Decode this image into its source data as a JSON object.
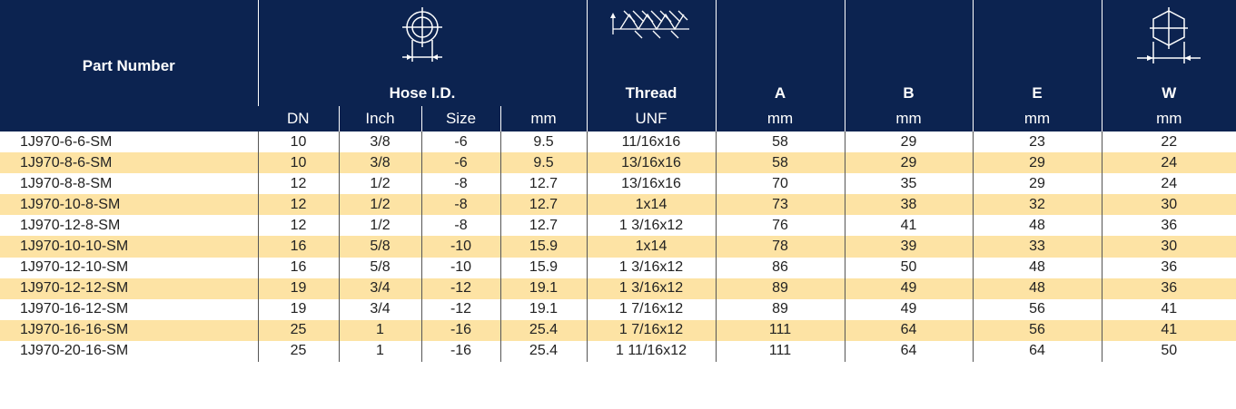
{
  "header": {
    "part_number": "Part Number",
    "hose_id": "Hose I.D.",
    "thread": "Thread",
    "a": "A",
    "b": "B",
    "e": "E",
    "w": "W",
    "sub": [
      "DN",
      "Inch",
      "Size",
      "mm",
      "UNF",
      "mm",
      "mm",
      "mm",
      "mm"
    ],
    "icons": [
      "hose-id-icon",
      "thread-icon",
      "hex-width-icon"
    ]
  },
  "colors": {
    "header_bg": "#0c2350",
    "stripe": "#fde3a4"
  },
  "rows": [
    [
      "1J970-6-6-SM",
      "10",
      "3/8",
      "-6",
      "9.5",
      "11/16x16",
      "58",
      "29",
      "23",
      "22"
    ],
    [
      "1J970-8-6-SM",
      "10",
      "3/8",
      "-6",
      "9.5",
      "13/16x16",
      "58",
      "29",
      "29",
      "24"
    ],
    [
      "1J970-8-8-SM",
      "12",
      "1/2",
      "-8",
      "12.7",
      "13/16x16",
      "70",
      "35",
      "29",
      "24"
    ],
    [
      "1J970-10-8-SM",
      "12",
      "1/2",
      "-8",
      "12.7",
      "1x14",
      "73",
      "38",
      "32",
      "30"
    ],
    [
      "1J970-12-8-SM",
      "12",
      "1/2",
      "-8",
      "12.7",
      "1 3/16x12",
      "76",
      "41",
      "48",
      "36"
    ],
    [
      "1J970-10-10-SM",
      "16",
      "5/8",
      "-10",
      "15.9",
      "1x14",
      "78",
      "39",
      "33",
      "30"
    ],
    [
      "1J970-12-10-SM",
      "16",
      "5/8",
      "-10",
      "15.9",
      "1 3/16x12",
      "86",
      "50",
      "48",
      "36"
    ],
    [
      "1J970-12-12-SM",
      "19",
      "3/4",
      "-12",
      "19.1",
      "1 3/16x12",
      "89",
      "49",
      "48",
      "36"
    ],
    [
      "1J970-16-12-SM",
      "19",
      "3/4",
      "-12",
      "19.1",
      "1 7/16x12",
      "89",
      "49",
      "56",
      "41"
    ],
    [
      "1J970-16-16-SM",
      "25",
      "1",
      "-16",
      "25.4",
      "1 7/16x12",
      "111",
      "64",
      "56",
      "41"
    ],
    [
      "1J970-20-16-SM",
      "25",
      "1",
      "-16",
      "25.4",
      "1 11/16x12",
      "111",
      "64",
      "64",
      "50"
    ]
  ]
}
